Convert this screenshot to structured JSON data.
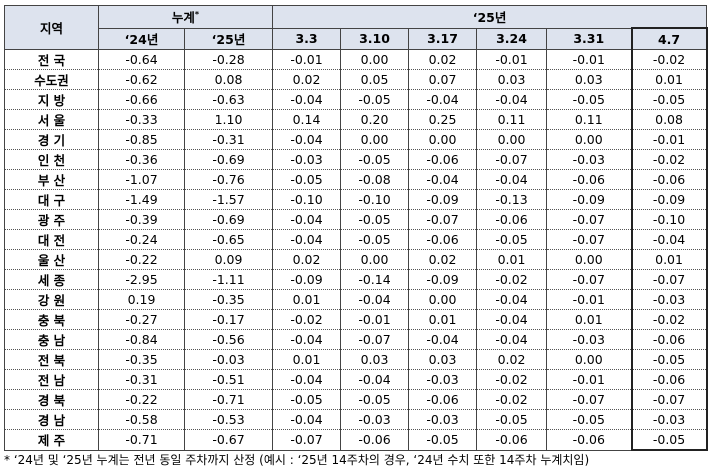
{
  "table": {
    "header": {
      "region": "지역",
      "cumulative": "누계",
      "cumulative_mark": "*",
      "year": "‘25년",
      "columns": [
        "‘24년",
        "‘25년",
        "3.3",
        "3.10",
        "3.17",
        "3.24",
        "3.31",
        "4.7"
      ]
    },
    "rows": [
      [
        "전 국",
        "-0.64",
        "-0.28",
        "-0.01",
        "0.00",
        "0.02",
        "-0.01",
        "-0.01",
        "-0.02"
      ],
      [
        "수도권",
        "-0.62",
        "0.08",
        "0.02",
        "0.05",
        "0.07",
        "0.03",
        "0.03",
        "0.01"
      ],
      [
        "지 방",
        "-0.66",
        "-0.63",
        "-0.04",
        "-0.05",
        "-0.04",
        "-0.04",
        "-0.05",
        "-0.05"
      ],
      [
        "서 울",
        "-0.33",
        "1.10",
        "0.14",
        "0.20",
        "0.25",
        "0.11",
        "0.11",
        "0.08"
      ],
      [
        "경 기",
        "-0.85",
        "-0.31",
        "-0.04",
        "0.00",
        "0.00",
        "0.00",
        "0.00",
        "-0.01"
      ],
      [
        "인 천",
        "-0.36",
        "-0.69",
        "-0.03",
        "-0.05",
        "-0.06",
        "-0.07",
        "-0.03",
        "-0.02"
      ],
      [
        "부 산",
        "-1.07",
        "-0.76",
        "-0.05",
        "-0.08",
        "-0.04",
        "-0.04",
        "-0.06",
        "-0.06"
      ],
      [
        "대 구",
        "-1.49",
        "-1.57",
        "-0.10",
        "-0.10",
        "-0.09",
        "-0.13",
        "-0.09",
        "-0.09"
      ],
      [
        "광 주",
        "-0.39",
        "-0.69",
        "-0.04",
        "-0.05",
        "-0.07",
        "-0.06",
        "-0.07",
        "-0.10"
      ],
      [
        "대 전",
        "-0.24",
        "-0.65",
        "-0.04",
        "-0.05",
        "-0.06",
        "-0.05",
        "-0.07",
        "-0.04"
      ],
      [
        "울 산",
        "-0.22",
        "0.09",
        "0.02",
        "0.00",
        "0.02",
        "0.01",
        "0.00",
        "0.01"
      ],
      [
        "세 종",
        "-2.95",
        "-1.11",
        "-0.09",
        "-0.14",
        "-0.09",
        "-0.02",
        "-0.07",
        "-0.07"
      ],
      [
        "강 원",
        "0.19",
        "-0.35",
        "0.01",
        "-0.04",
        "0.00",
        "-0.04",
        "-0.01",
        "-0.03"
      ],
      [
        "충 북",
        "-0.27",
        "-0.17",
        "-0.02",
        "-0.01",
        "0.01",
        "-0.04",
        "0.01",
        "-0.02"
      ],
      [
        "충 남",
        "-0.84",
        "-0.56",
        "-0.04",
        "-0.07",
        "-0.04",
        "-0.04",
        "-0.03",
        "-0.06"
      ],
      [
        "전 북",
        "-0.35",
        "-0.03",
        "0.01",
        "0.03",
        "0.03",
        "0.02",
        "0.00",
        "-0.05"
      ],
      [
        "전 남",
        "-0.31",
        "-0.51",
        "-0.04",
        "-0.04",
        "-0.03",
        "-0.02",
        "-0.01",
        "-0.06"
      ],
      [
        "경 북",
        "-0.22",
        "-0.71",
        "-0.05",
        "-0.05",
        "-0.06",
        "-0.02",
        "-0.07",
        "-0.07"
      ],
      [
        "경 남",
        "-0.58",
        "-0.53",
        "-0.04",
        "-0.03",
        "-0.03",
        "-0.05",
        "-0.05",
        "-0.03"
      ],
      [
        "제 주",
        "-0.71",
        "-0.67",
        "-0.07",
        "-0.06",
        "-0.05",
        "-0.06",
        "-0.06",
        "-0.05"
      ]
    ]
  },
  "footnote": "* ‘24년 및 ‘25년 누계는 전년 동일 주차까지 산정 (예시 : ‘25년 14주차의 경우, ‘24년 수치 또한 14주차 누계치임)"
}
